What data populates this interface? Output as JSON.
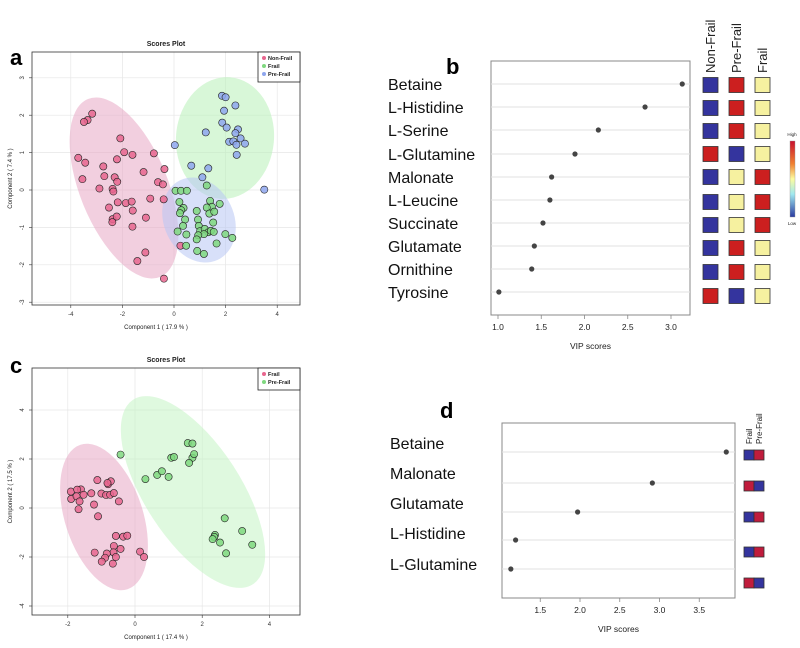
{
  "chart_data": [
    {
      "panel": "a",
      "type": "scatter",
      "title": "Scores Plot",
      "xlabel": "Component 1 ( 17.9 % )",
      "ylabel": "Component 2 ( 7.4 % )",
      "xticks": [
        -4,
        -2,
        0,
        2,
        4
      ],
      "yticks": [
        -3,
        -2,
        -1,
        0,
        1,
        2,
        3
      ],
      "grid": true,
      "legend_position": "top-right",
      "series": [
        {
          "name": "Non-Frail",
          "color": "#e8668f",
          "ellipse_color": "#e8a8c4",
          "points": [
            [
              -3.17,
              2.04
            ],
            [
              -3.35,
              1.87
            ],
            [
              -3.49,
              1.82
            ],
            [
              -2.08,
              1.38
            ],
            [
              -1.93,
              1.01
            ],
            [
              -1.61,
              0.94
            ],
            [
              -0.78,
              0.98
            ],
            [
              -3.71,
              0.86
            ],
            [
              -3.44,
              0.73
            ],
            [
              -2.21,
              0.82
            ],
            [
              -2.74,
              0.63
            ],
            [
              -0.37,
              0.56
            ],
            [
              -1.18,
              0.48
            ],
            [
              -3.55,
              0.29
            ],
            [
              -2.7,
              0.37
            ],
            [
              -2.3,
              0.34
            ],
            [
              -2.2,
              0.22
            ],
            [
              -0.62,
              0.21
            ],
            [
              -0.43,
              0.15
            ],
            [
              -2.89,
              0.04
            ],
            [
              -2.38,
              0.03
            ],
            [
              -2.35,
              -0.04
            ],
            [
              -0.92,
              -0.23
            ],
            [
              -0.4,
              -0.25
            ],
            [
              -2.18,
              -0.33
            ],
            [
              -1.87,
              -0.35
            ],
            [
              -1.64,
              -0.31
            ],
            [
              -2.52,
              -0.47
            ],
            [
              -1.6,
              -0.55
            ],
            [
              -2.38,
              -0.78
            ],
            [
              -2.22,
              -0.71
            ],
            [
              -2.39,
              -0.86
            ],
            [
              -1.09,
              -0.74
            ],
            [
              -1.61,
              -0.98
            ],
            [
              -1.11,
              -1.67
            ],
            [
              -1.42,
              -1.9
            ],
            [
              -0.39,
              -2.37
            ],
            [
              0.25,
              -1.49
            ]
          ]
        },
        {
          "name": "Frail",
          "color": "#7fd87f",
          "ellipse_color": "#b8f0b8",
          "points": [
            [
              0.06,
              -0.02
            ],
            [
              0.27,
              -0.02
            ],
            [
              0.5,
              -0.02
            ],
            [
              1.27,
              0.12
            ],
            [
              0.21,
              -0.32
            ],
            [
              0.37,
              -0.48
            ],
            [
              0.28,
              -0.54
            ],
            [
              0.23,
              -0.62
            ],
            [
              0.43,
              -0.79
            ],
            [
              0.35,
              -0.96
            ],
            [
              0.14,
              -1.11
            ],
            [
              0.48,
              -1.19
            ],
            [
              0.88,
              -0.56
            ],
            [
              0.93,
              -0.79
            ],
            [
              0.96,
              -0.96
            ],
            [
              1.4,
              -0.29
            ],
            [
              1.47,
              -0.45
            ],
            [
              1.27,
              -0.47
            ],
            [
              1.37,
              -0.63
            ],
            [
              1.56,
              -0.58
            ],
            [
              1.77,
              -0.37
            ],
            [
              1.52,
              -0.87
            ],
            [
              1.01,
              -1.1
            ],
            [
              1.19,
              -1.04
            ],
            [
              1.33,
              -1.13
            ],
            [
              1.43,
              -1.09
            ],
            [
              1.54,
              -1.12
            ],
            [
              1.16,
              -1.18
            ],
            [
              0.94,
              -1.21
            ],
            [
              0.88,
              -1.32
            ],
            [
              1.99,
              -1.18
            ],
            [
              2.26,
              -1.28
            ],
            [
              1.65,
              -1.43
            ],
            [
              0.9,
              -1.63
            ],
            [
              1.16,
              -1.71
            ],
            [
              0.47,
              -1.49
            ]
          ]
        },
        {
          "name": "Pre-Frail",
          "color": "#8ea6ee",
          "ellipse_color": "#b8c6f4",
          "points": [
            [
              1.86,
              2.52
            ],
            [
              2.0,
              2.48
            ],
            [
              1.94,
              2.12
            ],
            [
              2.38,
              2.26
            ],
            [
              1.87,
              1.8
            ],
            [
              2.04,
              1.67
            ],
            [
              2.48,
              1.62
            ],
            [
              2.38,
              1.52
            ],
            [
              1.23,
              1.54
            ],
            [
              2.14,
              1.29
            ],
            [
              2.3,
              1.3
            ],
            [
              2.58,
              1.38
            ],
            [
              2.42,
              1.21
            ],
            [
              2.75,
              1.24
            ],
            [
              0.03,
              1.2
            ],
            [
              2.43,
              0.94
            ],
            [
              0.67,
              0.65
            ],
            [
              1.33,
              0.58
            ],
            [
              1.1,
              0.34
            ],
            [
              3.5,
              0.01
            ]
          ]
        }
      ]
    },
    {
      "panel": "b",
      "type": "scatter",
      "xlabel": "VIP scores",
      "xticks": [
        1.0,
        1.5,
        2.0,
        2.5,
        3.0
      ],
      "categories": [
        "Betaine",
        "L-Histidine",
        "L-Serine",
        "L-Glutamine",
        "Malonate",
        "L-Leucine",
        "Succinate",
        "Glutamate",
        "Ornithine",
        "Tyrosine"
      ],
      "values": [
        3.13,
        2.7,
        2.16,
        1.89,
        1.62,
        1.6,
        1.52,
        1.42,
        1.39,
        1.01
      ],
      "heatmap_columns": [
        "Non-Frail",
        "Pre-Frail",
        "Frail"
      ],
      "heatmap": [
        [
          "low",
          "high",
          "mid"
        ],
        [
          "low",
          "high",
          "mid"
        ],
        [
          "low",
          "high",
          "mid"
        ],
        [
          "high",
          "low",
          "mid"
        ],
        [
          "low",
          "mid",
          "high"
        ],
        [
          "low",
          "mid",
          "high"
        ],
        [
          "low",
          "mid",
          "high"
        ],
        [
          "low",
          "high",
          "mid"
        ],
        [
          "low",
          "high",
          "mid"
        ],
        [
          "high",
          "low",
          "mid"
        ]
      ],
      "colorbar": {
        "high_label": "High",
        "low_label": "Low"
      },
      "level_colors": {
        "high": "#cc1f1f",
        "mid": "#f6f1a0",
        "low": "#34349e"
      }
    },
    {
      "panel": "c",
      "type": "scatter",
      "title": "Scores Plot",
      "xlabel": "Component 1 ( 17.4 % )",
      "ylabel": "Component 2 ( 17.5 % )",
      "xticks": [
        -2,
        0,
        2,
        4
      ],
      "yticks": [
        -4,
        -2,
        0,
        2,
        4
      ],
      "grid": true,
      "legend_position": "top-right",
      "series": [
        {
          "name": "Frail",
          "color": "#e8668f",
          "ellipse_color": "#e8a8c4",
          "points": [
            [
              -1.91,
              0.67
            ],
            [
              -1.61,
              0.76
            ],
            [
              -1.72,
              0.75
            ],
            [
              -1.9,
              0.37
            ],
            [
              -1.74,
              0.48
            ],
            [
              -1.53,
              0.54
            ],
            [
              -1.65,
              0.27
            ],
            [
              -1.68,
              -0.05
            ],
            [
              -1.22,
              0.14
            ],
            [
              -1.1,
              -0.34
            ],
            [
              -1.12,
              1.14
            ],
            [
              -0.8,
              0.97
            ],
            [
              -0.72,
              1.09
            ],
            [
              -0.82,
              1.02
            ],
            [
              -1.0,
              0.59
            ],
            [
              -0.86,
              0.53
            ],
            [
              -0.74,
              0.54
            ],
            [
              -0.63,
              0.61
            ],
            [
              -1.3,
              0.6
            ],
            [
              -0.48,
              0.27
            ],
            [
              -0.57,
              -1.14
            ],
            [
              -0.35,
              -1.17
            ],
            [
              -0.23,
              -1.13
            ],
            [
              -0.63,
              -1.55
            ],
            [
              -0.43,
              -1.67
            ],
            [
              -0.64,
              -1.81
            ],
            [
              -0.84,
              -1.86
            ],
            [
              -0.57,
              -2.0
            ],
            [
              -0.89,
              -2.03
            ],
            [
              -1.2,
              -1.82
            ],
            [
              -0.99,
              -2.19
            ],
            [
              -0.66,
              -2.27
            ],
            [
              0.15,
              -1.78
            ],
            [
              0.27,
              -2.0
            ]
          ]
        },
        {
          "name": "Pre-Frail",
          "color": "#7fd87f",
          "ellipse_color": "#c4f4c4",
          "points": [
            [
              -0.43,
              2.18
            ],
            [
              0.31,
              1.18
            ],
            [
              0.66,
              1.35
            ],
            [
              0.8,
              1.5
            ],
            [
              1.0,
              1.27
            ],
            [
              1.08,
              2.05
            ],
            [
              1.16,
              2.08
            ],
            [
              1.57,
              2.65
            ],
            [
              1.71,
              2.63
            ],
            [
              1.71,
              2.05
            ],
            [
              1.76,
              2.2
            ],
            [
              1.61,
              1.84
            ],
            [
              2.67,
              -0.42
            ],
            [
              2.38,
              -1.1
            ],
            [
              2.36,
              -1.18
            ],
            [
              2.31,
              -1.27
            ],
            [
              2.53,
              -1.41
            ],
            [
              2.71,
              -1.85
            ],
            [
              3.19,
              -0.94
            ],
            [
              3.49,
              -1.5
            ]
          ]
        }
      ]
    },
    {
      "panel": "d",
      "type": "scatter",
      "xlabel": "VIP scores",
      "xticks": [
        1.5,
        2.0,
        2.5,
        3.0,
        3.5
      ],
      "categories": [
        "Betaine",
        "Malonate",
        "Glutamate",
        "L-Histidine",
        "L-Glutamine"
      ],
      "values": [
        3.84,
        2.91,
        1.97,
        1.19,
        1.13
      ],
      "heatmap_columns": [
        "Frail",
        "Pre-Frail"
      ],
      "heatmap": [
        [
          "low",
          "high"
        ],
        [
          "high",
          "low"
        ],
        [
          "low",
          "high"
        ],
        [
          "low",
          "high"
        ],
        [
          "high",
          "low"
        ]
      ],
      "level_colors": {
        "high": "#c01c3c",
        "low": "#34349e"
      }
    }
  ]
}
